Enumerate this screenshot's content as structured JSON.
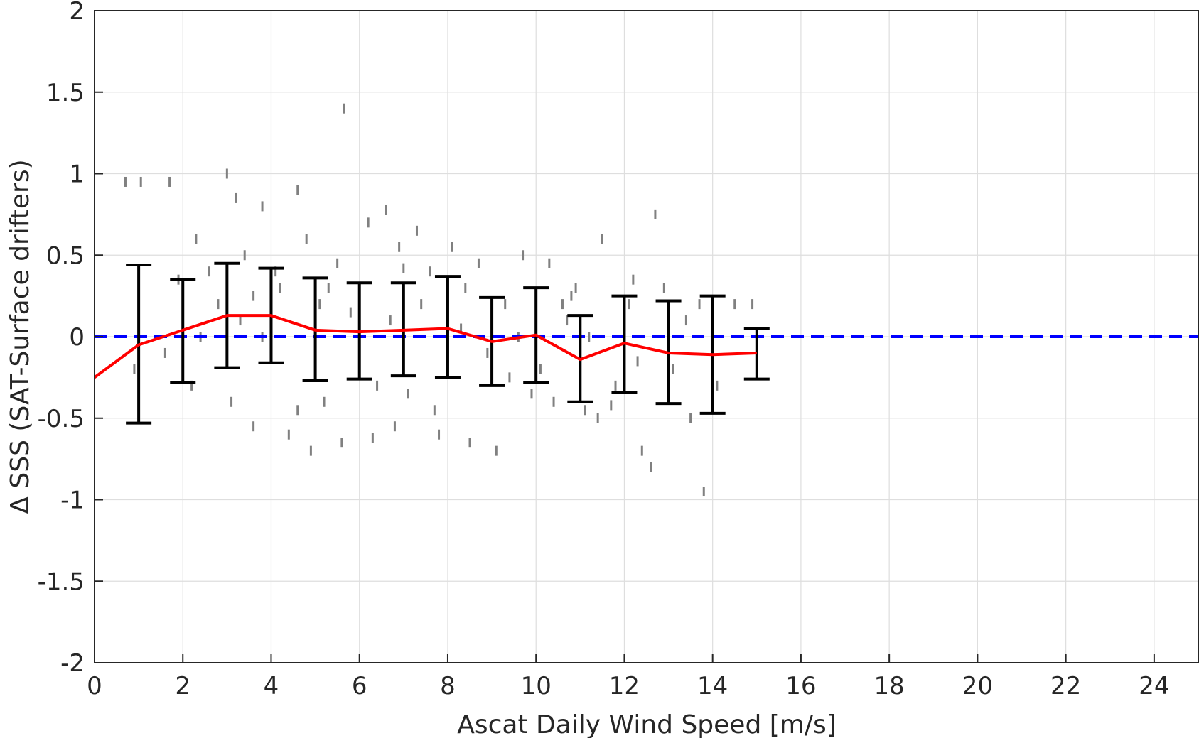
{
  "chart_data": {
    "type": "scatter",
    "title": "",
    "xlabel": "Ascat Daily Wind Speed [m/s]",
    "ylabel": "Δ SSS (SAT-Surface drifters)",
    "xlim": [
      0,
      25
    ],
    "ylim": [
      -2,
      2
    ],
    "xticks": [
      0,
      2,
      4,
      6,
      8,
      10,
      12,
      14,
      16,
      18,
      20,
      22,
      24
    ],
    "xtick_labels": [
      "0",
      "2",
      "4",
      "6",
      "8",
      "10",
      "12",
      "14",
      "16",
      "18",
      "20",
      "22",
      "24"
    ],
    "yticks": [
      2,
      1.5,
      1,
      0.5,
      0,
      -0.5,
      -1,
      -1.5,
      -2
    ],
    "ytick_labels": [
      "2",
      "1.5",
      "1",
      "0.5",
      "0",
      "-0.5",
      "-1",
      "-1.5",
      "-2"
    ],
    "grid": true,
    "zero_line": {
      "y": 0,
      "color": "#0000ff",
      "style": "dashed"
    },
    "mean_line": {
      "color": "#ff0000",
      "x": [
        0,
        1,
        2,
        3,
        4,
        5,
        6,
        7,
        8,
        9,
        10,
        11,
        12,
        13,
        14,
        15
      ],
      "y": [
        -0.25,
        -0.05,
        0.04,
        0.13,
        0.13,
        0.04,
        0.03,
        0.04,
        0.05,
        -0.03,
        0.01,
        -0.14,
        -0.04,
        -0.1,
        -0.11,
        -0.1
      ]
    },
    "error_bars": {
      "color": "#000000",
      "x": [
        1,
        2,
        3,
        4,
        5,
        6,
        7,
        8,
        9,
        10,
        11,
        12,
        13,
        14,
        15
      ],
      "upper": [
        0.44,
        0.35,
        0.45,
        0.42,
        0.36,
        0.33,
        0.33,
        0.37,
        0.24,
        0.3,
        0.13,
        0.25,
        0.22,
        0.25,
        0.05
      ],
      "lower": [
        -0.53,
        -0.28,
        -0.19,
        -0.16,
        -0.27,
        -0.26,
        -0.24,
        -0.25,
        -0.3,
        -0.28,
        -0.4,
        -0.34,
        -0.41,
        -0.47,
        -0.26
      ]
    },
    "scatter_points": {
      "color": "#808080",
      "x": [
        0.7,
        1.05,
        1.7,
        1.9,
        2.3,
        2.6,
        2.8,
        3.0,
        3.2,
        3.4,
        3.6,
        3.8,
        4.1,
        4.6,
        4.8,
        5.3,
        5.65,
        6.2,
        6.6,
        6.9,
        7.3,
        7.6,
        8.1,
        8.7,
        9.3,
        9.7,
        10.3,
        10.9,
        11.5,
        12.2,
        12.7,
        13.4,
        13.7,
        14.5,
        14.9,
        0.9,
        1.6,
        2.2,
        3.1,
        3.6,
        4.4,
        5.6,
        6.3,
        6.8,
        7.8,
        8.5,
        9.1,
        10.4,
        11.4,
        12.4,
        12.6,
        13.8,
        2.4,
        3.3,
        4.2,
        5.1,
        5.8,
        6.7,
        7.4,
        8.3,
        8.9,
        9.6,
        10.1,
        10.7,
        11.2,
        11.8,
        12.3,
        13.1,
        14.1,
        4.9,
        5.2,
        6.0,
        7.1,
        8.0,
        9.4,
        10.6,
        11.1,
        12.9,
        3.8,
        4.6,
        5.5,
        6.4,
        7.0,
        7.7,
        8.4,
        9.9,
        10.8,
        11.7,
        12.1,
        13.5
      ],
      "y": [
        0.95,
        0.95,
        0.95,
        0.35,
        0.6,
        0.4,
        0.2,
        1.0,
        0.85,
        0.5,
        0.25,
        0.8,
        0.4,
        0.9,
        0.6,
        0.3,
        1.4,
        0.7,
        0.78,
        0.55,
        0.65,
        0.4,
        0.55,
        0.45,
        0.2,
        0.5,
        0.45,
        0.3,
        0.6,
        0.35,
        0.75,
        0.1,
        0.2,
        0.2,
        0.2,
        -0.2,
        -0.1,
        -0.3,
        -0.4,
        -0.55,
        -0.6,
        -0.65,
        -0.62,
        -0.55,
        -0.6,
        -0.65,
        -0.7,
        -0.4,
        -0.5,
        -0.7,
        -0.8,
        -0.95,
        0.0,
        0.1,
        0.3,
        0.2,
        0.15,
        0.1,
        0.2,
        0.05,
        -0.1,
        0.0,
        -0.2,
        0.1,
        0.0,
        -0.3,
        -0.15,
        -0.2,
        -0.3,
        -0.7,
        -0.4,
        0.3,
        -0.35,
        0.25,
        -0.25,
        0.2,
        -0.45,
        0.3,
        0.0,
        -0.45,
        0.45,
        -0.3,
        0.42,
        -0.45,
        0.3,
        -0.35,
        0.25,
        -0.42,
        0.2,
        -0.5
      ]
    }
  }
}
